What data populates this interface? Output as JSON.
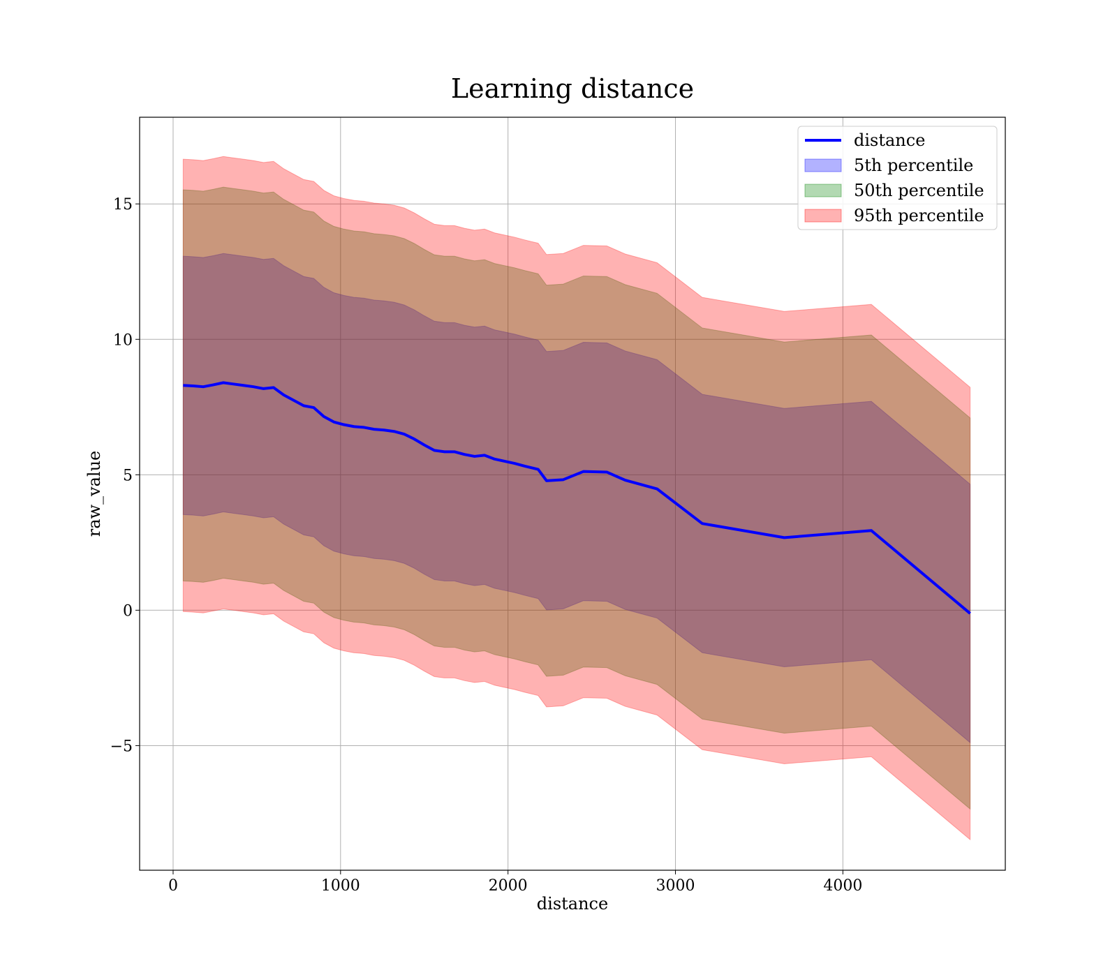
{
  "chart_data": {
    "type": "area",
    "title": "Learning distance",
    "xlabel": "distance",
    "ylabel": "raw_value",
    "xlim": [
      -200,
      4970
    ],
    "ylim": [
      -9.6,
      18.2
    ],
    "xticks": [
      0,
      1000,
      2000,
      3000,
      4000
    ],
    "xtick_labels": [
      "0",
      "1000",
      "2000",
      "3000",
      "4000"
    ],
    "yticks": [
      -5,
      0,
      5,
      10,
      15
    ],
    "ytick_labels": [
      "−5",
      "0",
      "5",
      "10",
      "15"
    ],
    "grid": true,
    "legend_position": "upper right",
    "x": [
      60,
      120,
      180,
      240,
      300,
      360,
      420,
      480,
      540,
      600,
      660,
      720,
      780,
      840,
      900,
      960,
      1020,
      1080,
      1140,
      1200,
      1260,
      1320,
      1380,
      1440,
      1500,
      1560,
      1620,
      1680,
      1740,
      1800,
      1860,
      1920,
      1980,
      2040,
      2100,
      2180,
      2230,
      2330,
      2450,
      2590,
      2700,
      2890,
      3160,
      3650,
      4170,
      4760
    ],
    "series": [
      {
        "name": "distance",
        "kind": "line",
        "color": "#0000ff",
        "values": [
          8.3,
          8.28,
          8.25,
          8.32,
          8.4,
          8.35,
          8.3,
          8.25,
          8.18,
          8.22,
          7.95,
          7.75,
          7.55,
          7.48,
          7.15,
          6.95,
          6.85,
          6.78,
          6.75,
          6.68,
          6.65,
          6.6,
          6.5,
          6.32,
          6.1,
          5.9,
          5.85,
          5.85,
          5.75,
          5.68,
          5.72,
          5.58,
          5.5,
          5.42,
          5.32,
          5.2,
          4.78,
          4.82,
          5.12,
          5.1,
          4.8,
          4.48,
          3.2,
          2.68,
          2.94,
          -0.12
        ]
      },
      {
        "name": "5th percentile",
        "kind": "band",
        "color": "#0000ff",
        "opacity": 0.3,
        "half_width": 4.77
      },
      {
        "name": "50th percentile",
        "kind": "band",
        "color": "#008000",
        "opacity": 0.3,
        "half_width": 7.22
      },
      {
        "name": "95th percentile",
        "kind": "band",
        "color": "#ff0000",
        "opacity": 0.3,
        "half_width": 8.35
      }
    ]
  }
}
